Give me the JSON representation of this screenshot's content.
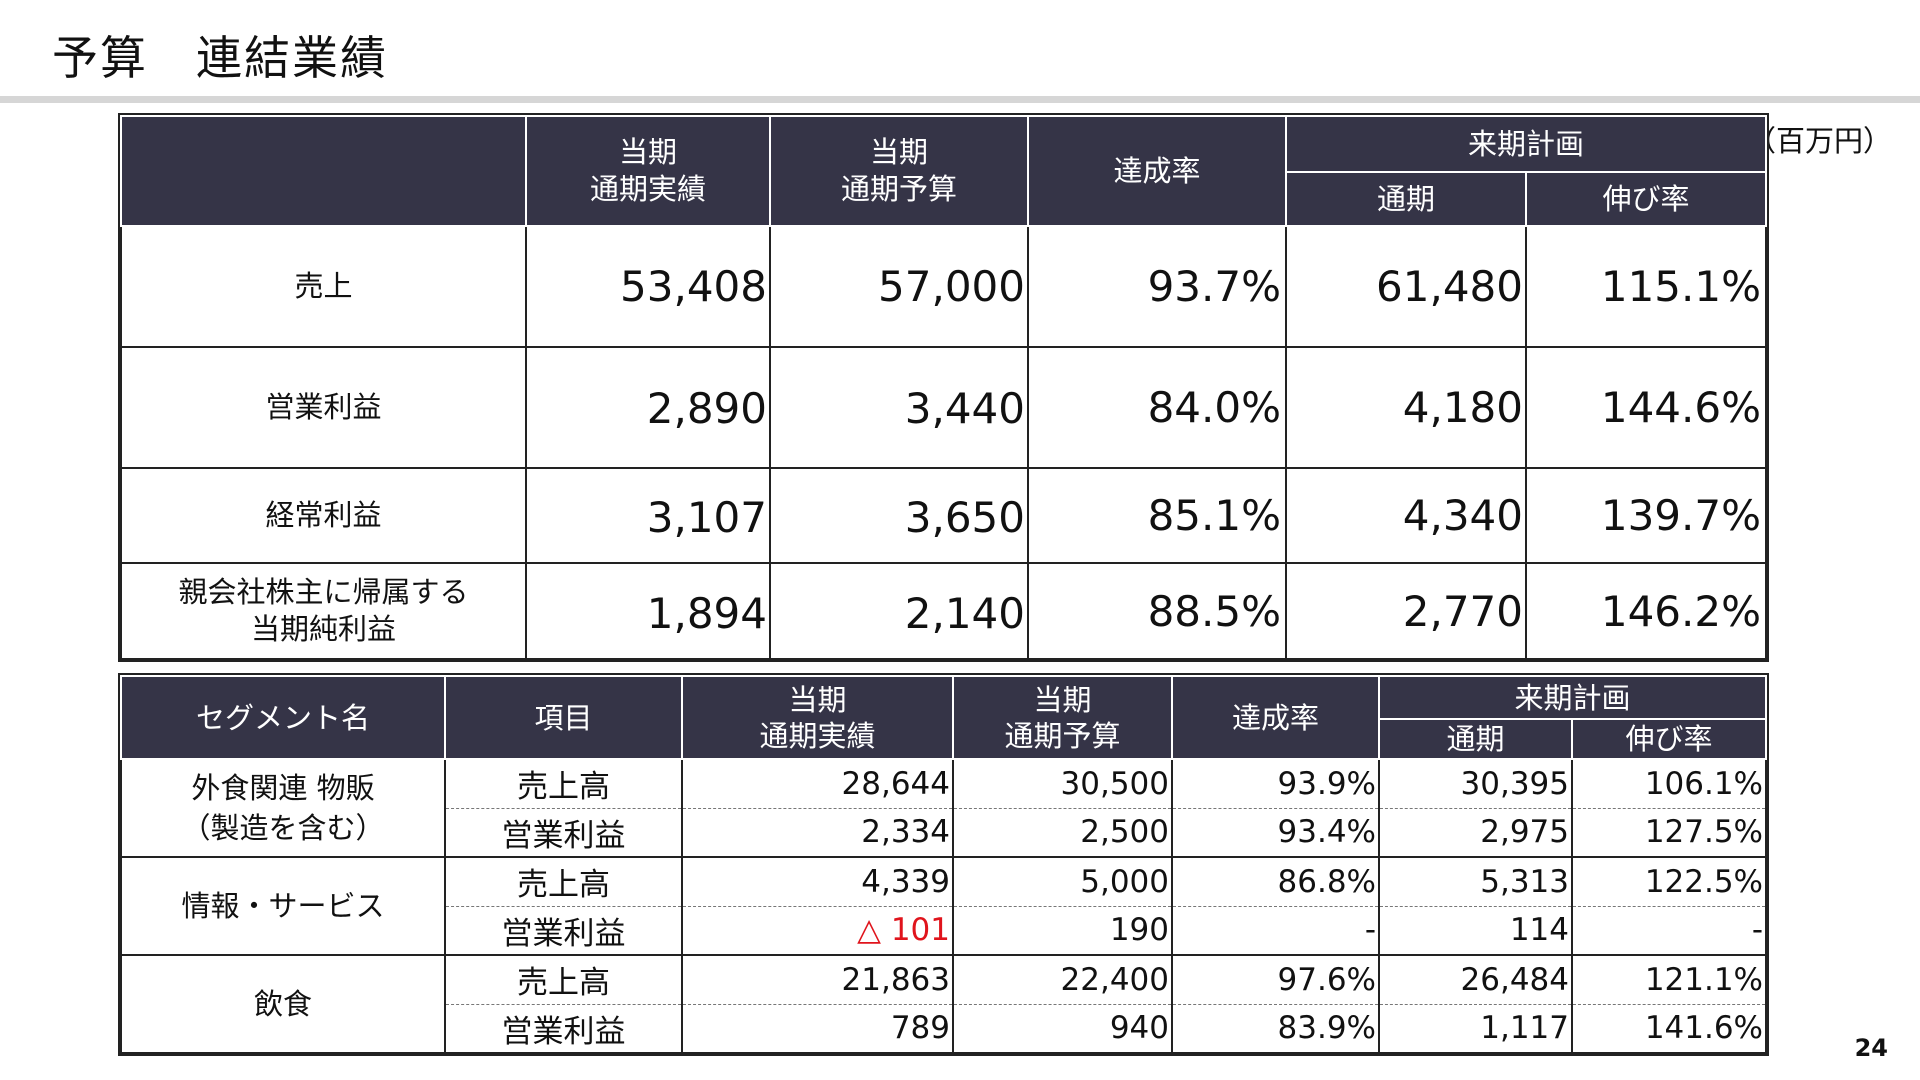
{
  "title": "予算　連結業績",
  "unit": "（百万円）",
  "page_number": "24",
  "consolidated": {
    "headers": {
      "current_actual": "当期\n通期実績",
      "current_budget": "当期\n通期予算",
      "achievement": "達成率",
      "next_plan": "来期計画",
      "next_full_year": "通期",
      "growth": "伸び率"
    },
    "rows": [
      {
        "label": "売上",
        "actual": "53,408",
        "budget": "57,000",
        "rate": "93.7%",
        "next": "61,480",
        "growth": "115.1%"
      },
      {
        "label": "営業利益",
        "actual": "2,890",
        "budget": "3,440",
        "rate": "84.0%",
        "next": "4,180",
        "growth": "144.6%"
      },
      {
        "label": "経常利益",
        "actual": "3,107",
        "budget": "3,650",
        "rate": "85.1%",
        "next": "4,340",
        "growth": "139.7%"
      },
      {
        "label": "親会社株主に帰属する\n当期純利益",
        "actual": "1,894",
        "budget": "2,140",
        "rate": "88.5%",
        "next": "2,770",
        "growth": "146.2%"
      }
    ]
  },
  "segments": {
    "headers": {
      "segment": "セグメント名",
      "item": "項目",
      "current_actual": "当期\n通期実績",
      "current_budget": "当期\n通期予算",
      "achievement": "達成率",
      "next_plan": "来期計画",
      "next_full_year": "通期",
      "growth": "伸び率"
    },
    "groups": [
      {
        "name": "外食関連 物販\n（製造を含む）",
        "rows": [
          {
            "item": "売上高",
            "actual": "28,644",
            "budget": "30,500",
            "rate": "93.9%",
            "next": "30,395",
            "growth": "106.1%"
          },
          {
            "item": "営業利益",
            "actual": "2,334",
            "budget": "2,500",
            "rate": "93.4%",
            "next": "2,975",
            "growth": "127.5%"
          }
        ]
      },
      {
        "name": "情報・サービス",
        "rows": [
          {
            "item": "売上高",
            "actual": "4,339",
            "budget": "5,000",
            "rate": "86.8%",
            "next": "5,313",
            "growth": "122.5%"
          },
          {
            "item": "営業利益",
            "actual": "△ 101",
            "budget": "190",
            "rate": "-",
            "next": "114",
            "growth": "-"
          }
        ]
      },
      {
        "name": "飲食",
        "rows": [
          {
            "item": "売上高",
            "actual": "21,863",
            "budget": "22,400",
            "rate": "97.6%",
            "next": "26,484",
            "growth": "121.1%"
          },
          {
            "item": "営業利益",
            "actual": "789",
            "budget": "940",
            "rate": "83.9%",
            "next": "1,117",
            "growth": "141.6%"
          }
        ]
      }
    ]
  },
  "colors": {
    "header_bg": "#353447",
    "negative": "#e0141c"
  }
}
